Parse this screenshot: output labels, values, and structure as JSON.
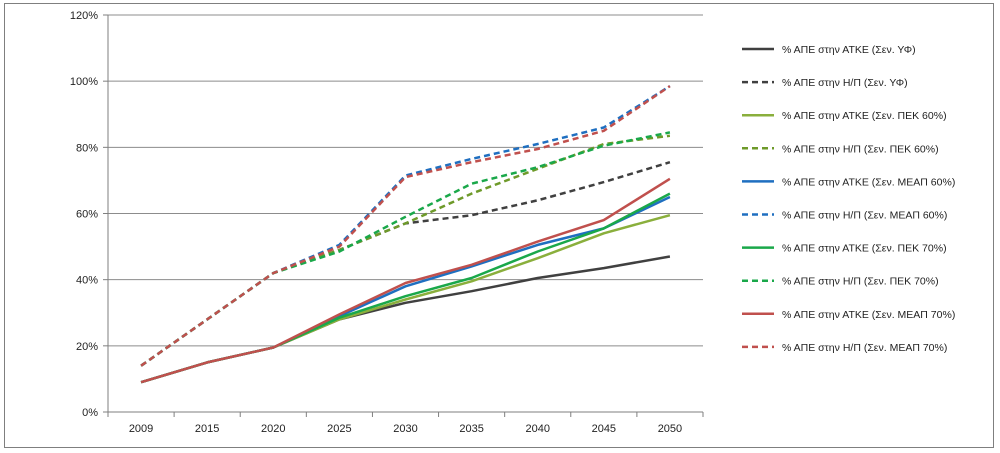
{
  "chart_data": {
    "type": "line",
    "title": "",
    "xlabel": "",
    "ylabel": "",
    "x": [
      "2009",
      "2015",
      "2020",
      "2025",
      "2030",
      "2035",
      "2040",
      "2045",
      "2050"
    ],
    "ylim": [
      0,
      120
    ],
    "yticks": [
      0,
      20,
      40,
      60,
      80,
      100,
      120
    ],
    "ytick_labels": [
      "0%",
      "20%",
      "40%",
      "60%",
      "80%",
      "100%",
      "120%"
    ],
    "grid": "horizontal",
    "legend_position": "right",
    "series": [
      {
        "name": "% ΑΠΕ στην ΑΤΚΕ (Σεν. ΥΦ)",
        "color": "#404040",
        "dashed": false,
        "values": [
          9,
          15,
          19.5,
          28,
          33,
          36.5,
          40.5,
          43.5,
          47
        ]
      },
      {
        "name": "% ΑΠΕ στην Η/Π (Σεν. ΥΦ)",
        "color": "#404040",
        "dashed": true,
        "values": [
          14,
          28,
          42,
          49,
          57,
          59.5,
          64,
          69.5,
          75.5
        ]
      },
      {
        "name": "% ΑΠΕ στην ΑΤΚΕ (Σεν. ΠΕΚ 60%)",
        "color": "#8aaf3c",
        "dashed": false,
        "values": [
          9,
          15,
          19.5,
          28,
          34,
          39.5,
          46.5,
          54,
          59.5
        ]
      },
      {
        "name": "% ΑΠΕ στην Η/Π (Σεν. ΠΕΚ 60%)",
        "color": "#6e9a2a",
        "dashed": true,
        "values": [
          14,
          28,
          42,
          49,
          57,
          66,
          73.5,
          81,
          83.5
        ]
      },
      {
        "name": "% ΑΠΕ στην ΑΤΚΕ (Σεν. ΜΕΑΠ 60%)",
        "color": "#1f6fc0",
        "dashed": false,
        "values": [
          9,
          15,
          19.5,
          29,
          38,
          44,
          50.5,
          55.5,
          65
        ]
      },
      {
        "name": "% ΑΠΕ στην Η/Π (Σεν. ΜΕΑΠ 60%)",
        "color": "#1f6fc0",
        "dashed": true,
        "values": [
          14,
          28,
          42,
          50.5,
          71.5,
          76.5,
          81,
          86,
          98.5
        ]
      },
      {
        "name": "% ΑΠΕ στην ΑΤΚΕ (Σεν. ΠΕΚ 70%)",
        "color": "#1aa84a",
        "dashed": false,
        "values": [
          9,
          15,
          19.5,
          28.5,
          35,
          40.5,
          48.5,
          55.5,
          66
        ]
      },
      {
        "name": "% ΑΠΕ στην Η/Π (Σεν. ΠΕΚ 70%)",
        "color": "#1aa84a",
        "dashed": true,
        "values": [
          14,
          28,
          42,
          48.5,
          59,
          69,
          74,
          80.5,
          84.5
        ]
      },
      {
        "name": "% ΑΠΕ στην ΑΤΚΕ (Σεν. ΜΕΑΠ 70%)",
        "color": "#c0504d",
        "dashed": false,
        "values": [
          9,
          15,
          19.5,
          29.5,
          39,
          44.5,
          51.5,
          58,
          70.5
        ]
      },
      {
        "name": "% ΑΠΕ στην Η/Π (Σεν. ΜΕΑΠ 70%)",
        "color": "#c0504d",
        "dashed": true,
        "values": [
          14,
          28,
          42,
          50,
          71,
          75.5,
          79.5,
          85,
          98.5
        ]
      }
    ]
  }
}
